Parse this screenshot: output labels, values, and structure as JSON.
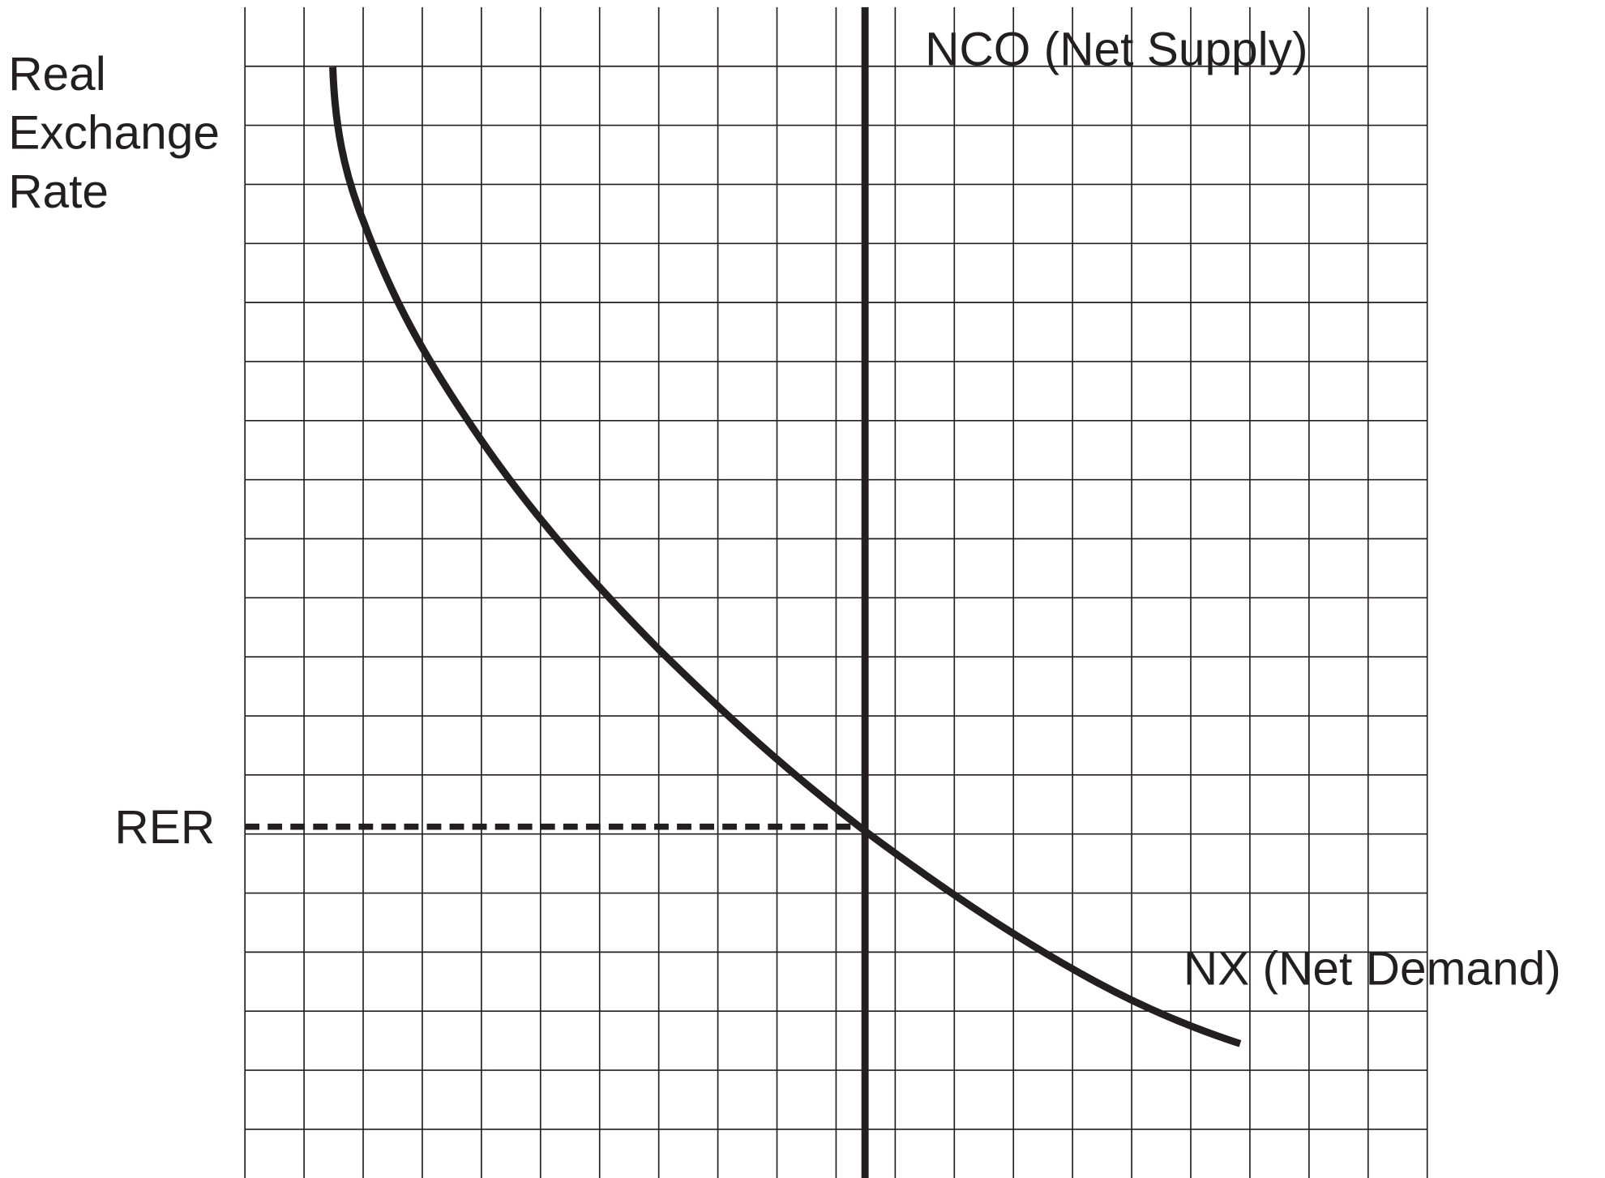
{
  "labels": {
    "y_axis": [
      "Real",
      "Exchange",
      "Rate"
    ],
    "rer": "RER",
    "nco": "NCO (Net Supply)",
    "nx": "NX (Net Demand)"
  }
}
